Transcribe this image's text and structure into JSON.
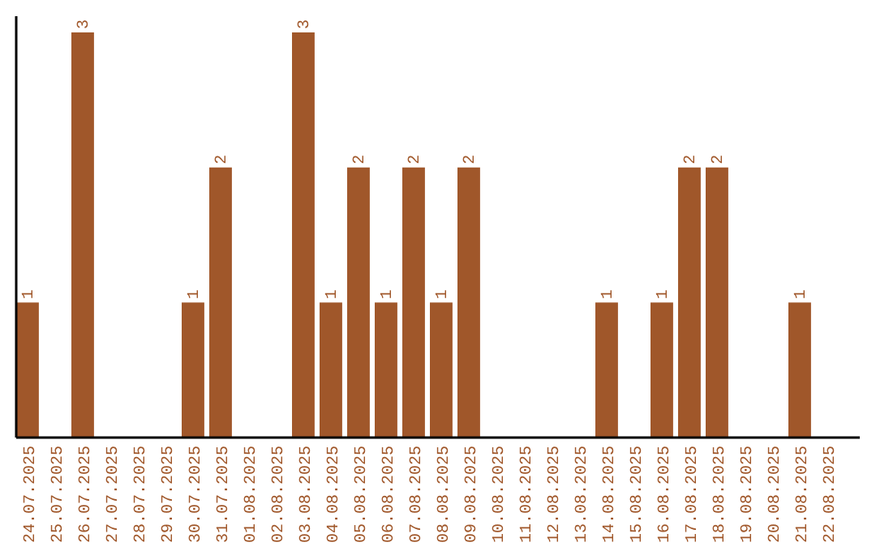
{
  "chart_data": {
    "type": "bar",
    "categories": [
      "24.07.2025",
      "25.07.2025",
      "26.07.2025",
      "27.07.2025",
      "28.07.2025",
      "29.07.2025",
      "30.07.2025",
      "31.07.2025",
      "01.08.2025",
      "02.08.2025",
      "03.08.2025",
      "04.08.2025",
      "05.08.2025",
      "06.08.2025",
      "07.08.2025",
      "08.08.2025",
      "09.08.2025",
      "10.08.2025",
      "11.08.2025",
      "12.08.2025",
      "13.08.2025",
      "14.08.2025",
      "15.08.2025",
      "16.08.2025",
      "17.08.2025",
      "18.08.2025",
      "19.08.2025",
      "20.08.2025",
      "21.08.2025",
      "22.08.2025"
    ],
    "values": [
      1,
      0,
      3,
      0,
      0,
      0,
      1,
      2,
      0,
      0,
      3,
      1,
      2,
      1,
      2,
      1,
      2,
      0,
      0,
      0,
      0,
      1,
      0,
      1,
      2,
      2,
      0,
      0,
      1,
      0
    ],
    "value_labels": [
      "1",
      null,
      "3",
      null,
      null,
      null,
      "1",
      "2",
      null,
      null,
      "3",
      "1",
      "2",
      "1",
      "2",
      "1",
      "2",
      null,
      null,
      null,
      null,
      "1",
      null,
      "1",
      "2",
      "2",
      null,
      null,
      "1",
      null
    ],
    "color": "#a0572a"
  }
}
